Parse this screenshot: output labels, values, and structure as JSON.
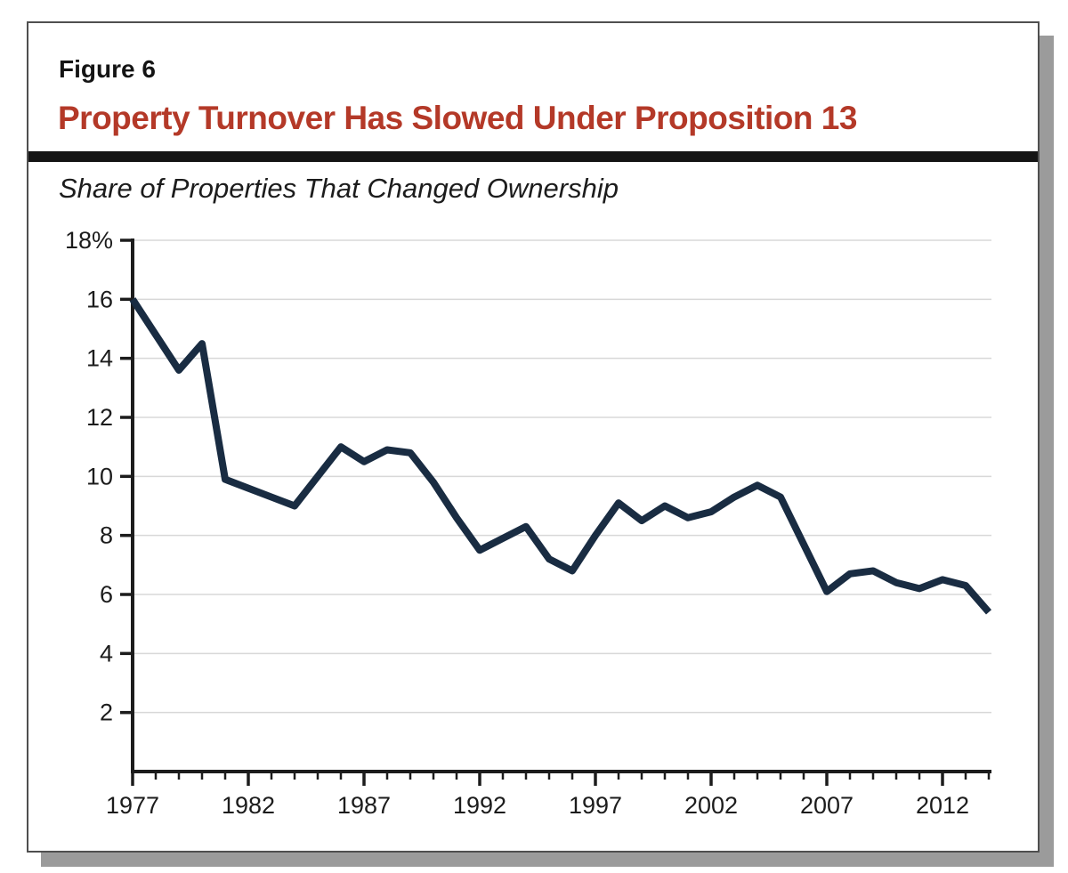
{
  "figure": {
    "label": "Figure 6",
    "title": "Property Turnover Has Slowed Under Proposition 13",
    "subtitle": "Share of Properties That Changed Ownership"
  },
  "colors": {
    "title_red": "#b43928",
    "line_navy": "#192c42",
    "axis_black": "#1c1c1c",
    "grid_gray": "#d8d8d8",
    "shadow_gray": "#9b9b9b",
    "border_gray": "#4f4f4f",
    "text_black": "#1c1c1c"
  },
  "chart_data": {
    "type": "line",
    "title": "Property Turnover Has Slowed Under Proposition 13",
    "subtitle": "Share of Properties That Changed Ownership",
    "xlabel": "",
    "ylabel": "Share of properties that changed ownership (%)",
    "ylim": [
      0,
      18
    ],
    "grid": true,
    "legend": "none",
    "x": [
      1977,
      1978,
      1979,
      1980,
      1981,
      1982,
      1983,
      1984,
      1985,
      1986,
      1987,
      1988,
      1989,
      1990,
      1991,
      1992,
      1993,
      1994,
      1995,
      1996,
      1997,
      1998,
      1999,
      2000,
      2001,
      2002,
      2003,
      2004,
      2005,
      2006,
      2007,
      2008,
      2009,
      2010,
      2011,
      2012,
      2013,
      2014
    ],
    "values": [
      16.0,
      14.8,
      13.6,
      14.5,
      9.9,
      9.6,
      9.3,
      9.0,
      10.0,
      11.0,
      10.5,
      10.9,
      10.8,
      9.8,
      8.6,
      7.5,
      7.9,
      8.3,
      7.2,
      6.8,
      8.0,
      9.1,
      8.5,
      9.0,
      8.6,
      8.8,
      9.3,
      9.7,
      9.3,
      7.7,
      6.1,
      6.7,
      6.8,
      6.4,
      6.2,
      6.5,
      6.3,
      5.4
    ],
    "y_ticks": [
      {
        "value": 18,
        "label": "18%"
      },
      {
        "value": 16,
        "label": "16"
      },
      {
        "value": 14,
        "label": "14"
      },
      {
        "value": 12,
        "label": "12"
      },
      {
        "value": 10,
        "label": "10"
      },
      {
        "value": 8,
        "label": "8"
      },
      {
        "value": 6,
        "label": "6"
      },
      {
        "value": 4,
        "label": "4"
      },
      {
        "value": 2,
        "label": "2"
      }
    ],
    "x_tick_labels": [
      {
        "value": 1977,
        "label": "1977"
      },
      {
        "value": 1982,
        "label": "1982"
      },
      {
        "value": 1987,
        "label": "1987"
      },
      {
        "value": 1992,
        "label": "1992"
      },
      {
        "value": 1997,
        "label": "1997"
      },
      {
        "value": 2002,
        "label": "2002"
      },
      {
        "value": 2007,
        "label": "2007"
      },
      {
        "value": 2012,
        "label": "2012"
      }
    ],
    "minor_x_tick_interval_years": 1
  }
}
